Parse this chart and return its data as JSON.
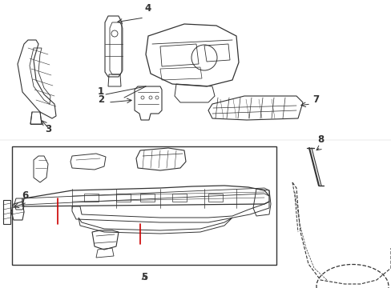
{
  "bg_color": "#ffffff",
  "line_color": "#333333",
  "red_color": "#cc0000",
  "label_color": "#000000",
  "fig_w": 4.89,
  "fig_h": 3.6,
  "dpi": 100
}
